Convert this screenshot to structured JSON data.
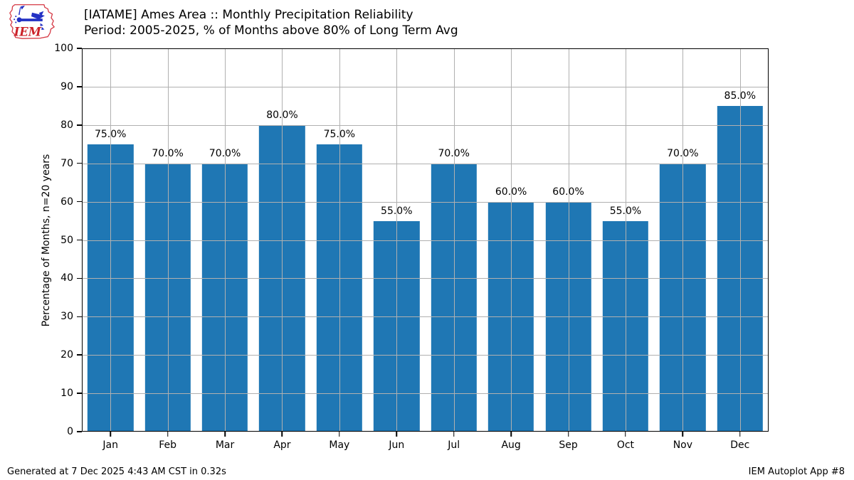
{
  "header": {
    "logo_text": "IEM",
    "title_line1": "[IATAME] Ames Area :: Monthly Precipitation Reliability",
    "title_line2": "Period: 2005-2025, % of Months above 80% of Long Term Avg"
  },
  "chart_data": {
    "type": "bar",
    "title": "[IATAME] Ames Area :: Monthly Precipitation Reliability",
    "subtitle": "Period: 2005-2025, % of Months above 80% of Long Term Avg",
    "categories": [
      "Jan",
      "Feb",
      "Mar",
      "Apr",
      "May",
      "Jun",
      "Jul",
      "Aug",
      "Sep",
      "Oct",
      "Nov",
      "Dec"
    ],
    "values": [
      75,
      70,
      70,
      80,
      75,
      55,
      70,
      60,
      60,
      55,
      70,
      85
    ],
    "bar_labels": [
      "75.0%",
      "70.0%",
      "70.0%",
      "80.0%",
      "75.0%",
      "55.0%",
      "70.0%",
      "60.0%",
      "60.0%",
      "55.0%",
      "70.0%",
      "85.0%"
    ],
    "xlabel": "",
    "ylabel": "Percentage of Months, n=20 years",
    "ylim": [
      0,
      100
    ],
    "yticks": [
      0,
      10,
      20,
      30,
      40,
      50,
      60,
      70,
      80,
      90,
      100
    ],
    "grid": true,
    "legend": "none",
    "bar_color": "#1f77b4",
    "grid_color": "#b0b0b0"
  },
  "footer": {
    "generated_text": "Generated at 7 Dec 2025 4:43 AM CST in 0.32s",
    "app_text": "IEM Autoplot App #8"
  }
}
